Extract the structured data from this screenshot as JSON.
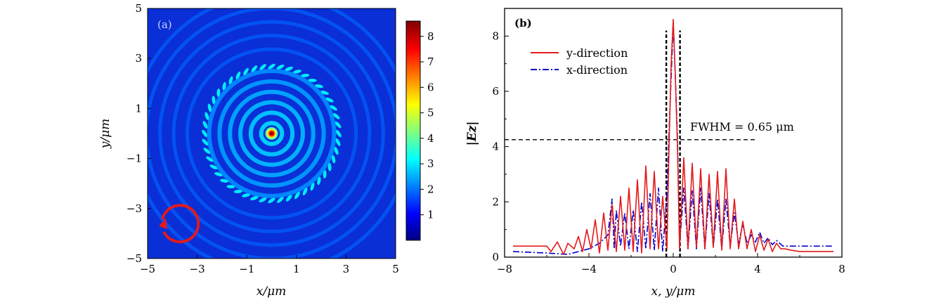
{
  "chart_data": [
    {
      "type": "heatmap",
      "panel_label": "(a)",
      "xlabel": "x/μm",
      "ylabel": "y/μm",
      "xlim": [
        -5,
        5
      ],
      "ylim": [
        -5,
        5
      ],
      "x_ticks": [
        -5,
        -3,
        -1,
        1,
        3,
        5
      ],
      "y_ticks": [
        -5,
        -3,
        -1,
        1,
        3,
        5
      ],
      "x_tick_labels": [
        "−5",
        "−3",
        "−1",
        "1",
        "3",
        "5"
      ],
      "y_tick_labels": [
        "−5",
        "−3",
        "−1",
        "1",
        "3",
        "5"
      ],
      "colorbar": {
        "min": 0,
        "max": 8.6,
        "ticks": [
          1,
          2,
          3,
          4,
          5,
          6,
          7,
          8
        ],
        "tick_labels": [
          "1",
          "2",
          "3",
          "4",
          "5",
          "6",
          "7",
          "8"
        ],
        "colormap": "jet"
      },
      "field": {
        "peak_value": 8.6,
        "peak_position": [
          0,
          0
        ],
        "ring_spacing_um": 0.42,
        "inner_ring_radius_um": 2.7,
        "inner_ring_value": 2.2,
        "outer_ring_radius_um": 4.0
      },
      "annotation": {
        "type": "circular-arrow",
        "color": "#e41a1c",
        "center": [
          -3.7,
          -3.7
        ],
        "radius_um": 0.7
      }
    },
    {
      "type": "line",
      "panel_label": "(b)",
      "xlabel": "x, y/μm",
      "ylabel": "|Ez|",
      "xlim": [
        -8,
        8
      ],
      "ylim": [
        0,
        9
      ],
      "x_ticks": [
        -8,
        -4,
        0,
        4,
        8
      ],
      "y_ticks": [
        0,
        2,
        4,
        6,
        8
      ],
      "x_tick_labels": [
        "−8",
        "−4",
        "0",
        "4",
        "8"
      ],
      "y_tick_labels": [
        "0",
        "2",
        "4",
        "6",
        "8"
      ],
      "legend_position": "top-left",
      "series": [
        {
          "name": "y-direction",
          "color": "#e41a1c",
          "style": "solid",
          "x": [
            -7.6,
            -6.0,
            -5.8,
            -5.5,
            -5.2,
            -5.0,
            -4.7,
            -4.5,
            -4.3,
            -4.1,
            -3.9,
            -3.7,
            -3.5,
            -3.3,
            -3.1,
            -2.9,
            -2.7,
            -2.5,
            -2.3,
            -2.1,
            -1.9,
            -1.7,
            -1.5,
            -1.3,
            -1.1,
            -0.9,
            -0.7,
            -0.5,
            -0.3,
            -0.2,
            -0.1,
            0.0,
            0.1,
            0.2,
            0.3,
            0.5,
            0.7,
            0.9,
            1.1,
            1.3,
            1.5,
            1.7,
            1.9,
            2.1,
            2.3,
            2.5,
            2.7,
            2.9,
            3.1,
            3.3,
            3.5,
            3.7,
            3.9,
            4.1,
            4.3,
            4.5,
            4.7,
            4.9,
            5.1,
            5.3,
            5.6,
            6.0,
            7.6
          ],
          "y": [
            0.4,
            0.4,
            0.2,
            0.55,
            0.1,
            0.5,
            0.3,
            0.75,
            0.2,
            1.0,
            0.3,
            1.35,
            0.15,
            1.6,
            0.25,
            1.9,
            0.2,
            2.2,
            0.25,
            2.5,
            0.2,
            2.8,
            0.15,
            3.3,
            0.3,
            3.1,
            0.3,
            2.2,
            0.3,
            4.0,
            7.0,
            8.6,
            6.5,
            4.0,
            0.3,
            3.6,
            0.3,
            3.4,
            0.35,
            3.2,
            0.3,
            3.0,
            0.35,
            3.1,
            0.25,
            3.2,
            0.3,
            2.1,
            0.3,
            1.3,
            0.3,
            1.0,
            0.2,
            0.8,
            0.25,
            0.65,
            0.2,
            0.5,
            0.3,
            0.3,
            0.25,
            0.2,
            0.2
          ]
        },
        {
          "name": "x-direction",
          "color": "#0000cc",
          "style": "dash-dot",
          "x": [
            -7.6,
            -6.0,
            -5.0,
            -4.5,
            -4.0,
            -3.5,
            -3.1,
            -2.9,
            -2.8,
            -2.7,
            -2.5,
            -2.3,
            -2.1,
            -1.9,
            -1.7,
            -1.5,
            -1.3,
            -1.1,
            -0.9,
            -0.7,
            -0.5,
            -0.3,
            -0.2,
            -0.1,
            0.0,
            0.1,
            0.2,
            0.3,
            0.5,
            0.7,
            0.9,
            1.1,
            1.3,
            1.5,
            1.7,
            1.9,
            2.1,
            2.3,
            2.5,
            2.7,
            2.9,
            3.1,
            3.3,
            3.5,
            3.7,
            3.9,
            4.1,
            4.3,
            4.5,
            4.7,
            4.9,
            5.2,
            6.0,
            7.6
          ],
          "y": [
            0.2,
            0.15,
            0.1,
            0.2,
            0.3,
            0.5,
            0.8,
            2.1,
            0.3,
            1.7,
            0.4,
            1.6,
            0.3,
            1.7,
            0.2,
            2.0,
            0.3,
            2.3,
            0.25,
            2.5,
            0.2,
            2.3,
            4.5,
            6.5,
            8.5,
            6.5,
            4.3,
            0.4,
            2.5,
            0.3,
            2.4,
            0.3,
            2.5,
            0.3,
            2.3,
            0.35,
            2.1,
            0.3,
            2.1,
            0.4,
            1.6,
            0.5,
            1.2,
            0.5,
            0.8,
            0.55,
            0.9,
            0.5,
            0.7,
            0.45,
            0.6,
            0.4,
            0.4,
            0.4
          ]
        }
      ],
      "annotations": {
        "fwhm_label": "FWHM = 0.65 μm",
        "fwhm_level": 4.25,
        "fwhm_line_x": [
          -8,
          4
        ],
        "fwhm_markers_x": [
          -0.33,
          0.32
        ]
      }
    }
  ]
}
